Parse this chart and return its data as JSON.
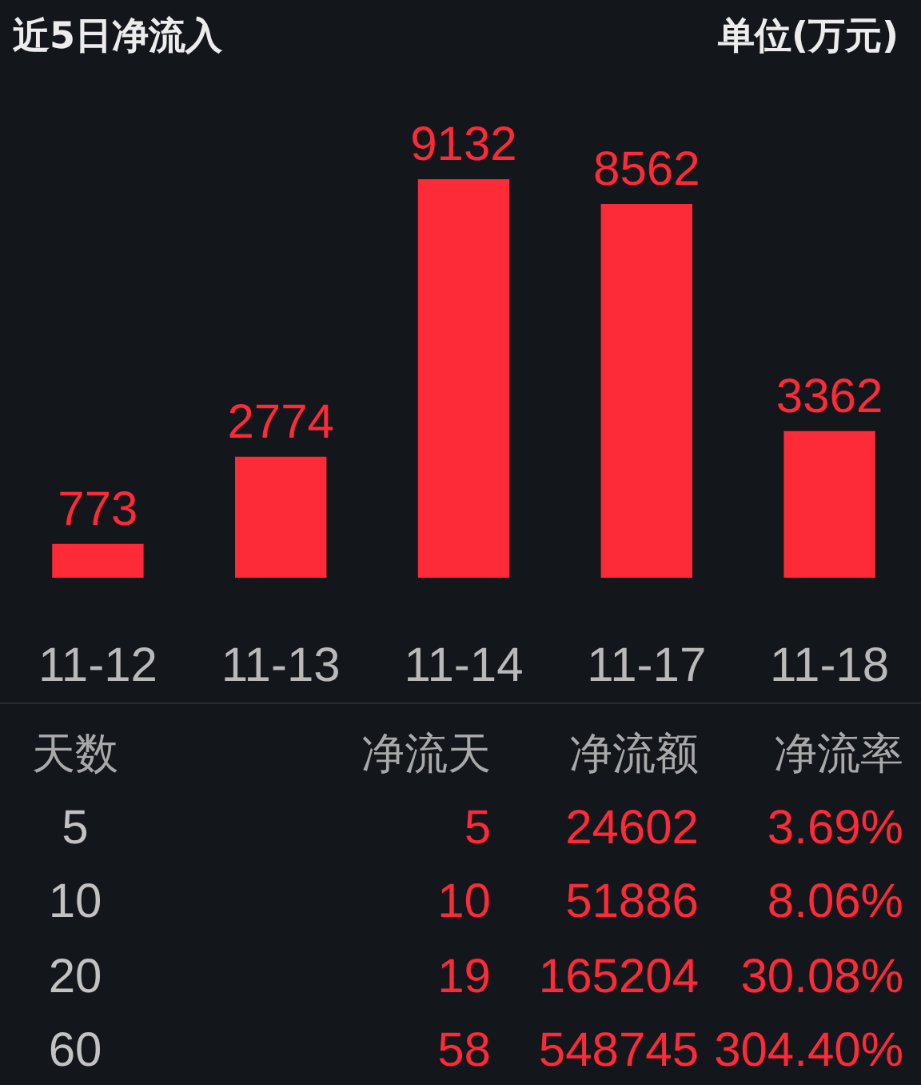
{
  "chart_data": [
    {
      "type": "bar",
      "title": "近5日净流入",
      "ylabel": "单位(万元)",
      "categories": [
        "11-12",
        "11-13",
        "11-14",
        "11-17",
        "11-18"
      ],
      "values": [
        773,
        2774,
        9132,
        8562,
        3362
      ],
      "color": "#fd2a37",
      "data_labels": true
    },
    {
      "type": "other",
      "ylabel": "天数",
      "categories": [
        "5",
        "10",
        "20",
        "60"
      ],
      "series": [
        {
          "name": "净流天",
          "values": [
            5,
            10,
            19,
            58
          ]
        },
        {
          "name": "净流额",
          "values": [
            24602,
            51886,
            165204,
            548745
          ]
        },
        {
          "name": "净流率",
          "values": [
            3.69,
            8.06,
            30.08,
            304.4
          ],
          "value_labels": [
            "3.69%",
            "8.06%",
            "30.08%",
            "304.40%"
          ]
        }
      ],
      "data_labels": true
    }
  ]
}
